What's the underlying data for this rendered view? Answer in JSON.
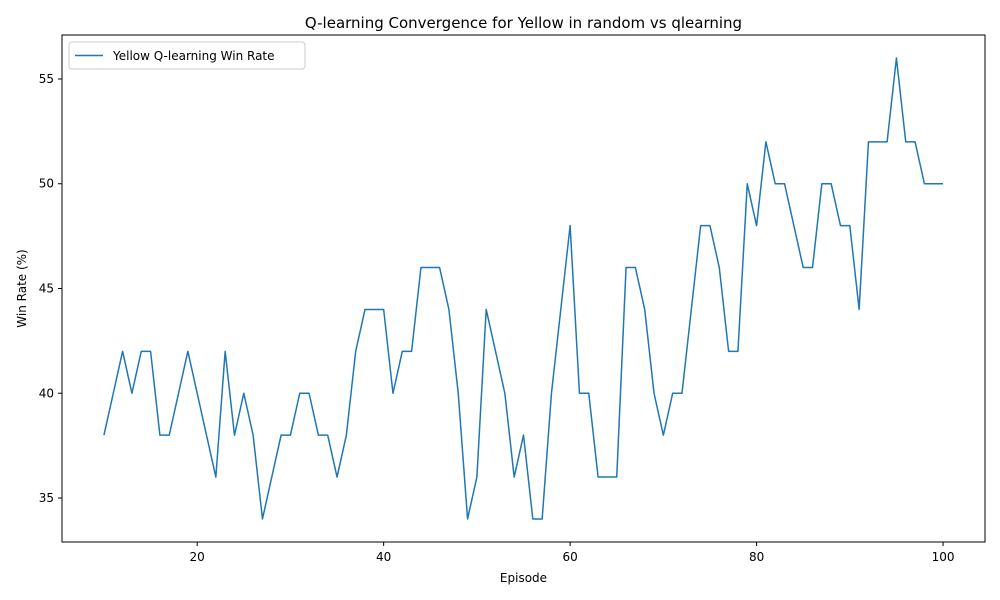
{
  "chart_data": {
    "type": "line",
    "title": "Q-learning Convergence for Yellow in random vs qlearning",
    "xlabel": "Episode",
    "ylabel": "Win Rate (%)",
    "xlim": [
      5.5,
      104.5
    ],
    "ylim": [
      32.9,
      57.1
    ],
    "xticks": [
      20,
      40,
      60,
      80,
      100
    ],
    "yticks": [
      35,
      40,
      45,
      50,
      55
    ],
    "grid": false,
    "legend_position": "upper-left",
    "series": [
      {
        "name": "Yellow Q-learning Win Rate",
        "color": "#1f77b4",
        "x": [
          10,
          11,
          12,
          13,
          14,
          15,
          16,
          17,
          18,
          19,
          20,
          21,
          22,
          23,
          24,
          25,
          26,
          27,
          28,
          29,
          30,
          31,
          32,
          33,
          34,
          35,
          36,
          37,
          38,
          39,
          40,
          41,
          42,
          43,
          44,
          45,
          46,
          47,
          48,
          49,
          50,
          51,
          52,
          53,
          54,
          55,
          56,
          57,
          58,
          59,
          60,
          61,
          62,
          63,
          64,
          65,
          66,
          67,
          68,
          69,
          70,
          71,
          72,
          73,
          74,
          75,
          76,
          77,
          78,
          79,
          80,
          81,
          82,
          83,
          84,
          85,
          86,
          87,
          88,
          89,
          90,
          91,
          92,
          93,
          94,
          95,
          96,
          97,
          98,
          99,
          100
        ],
        "y": [
          38,
          40,
          42,
          40,
          42,
          42,
          38,
          38,
          40,
          42,
          40,
          38,
          36,
          42,
          38,
          40,
          38,
          34,
          36,
          38,
          38,
          40,
          40,
          38,
          38,
          36,
          38,
          42,
          44,
          44,
          44,
          40,
          42,
          42,
          46,
          46,
          46,
          44,
          40,
          34,
          36,
          44,
          42,
          40,
          36,
          38,
          34,
          34,
          40,
          44,
          48,
          40,
          40,
          36,
          36,
          36,
          46,
          46,
          44,
          40,
          38,
          40,
          40,
          44,
          48,
          48,
          46,
          42,
          42,
          50,
          48,
          52,
          50,
          50,
          48,
          46,
          46,
          50,
          50,
          48,
          48,
          44,
          52,
          52,
          52,
          56,
          52,
          52,
          50,
          50,
          50
        ]
      }
    ]
  }
}
